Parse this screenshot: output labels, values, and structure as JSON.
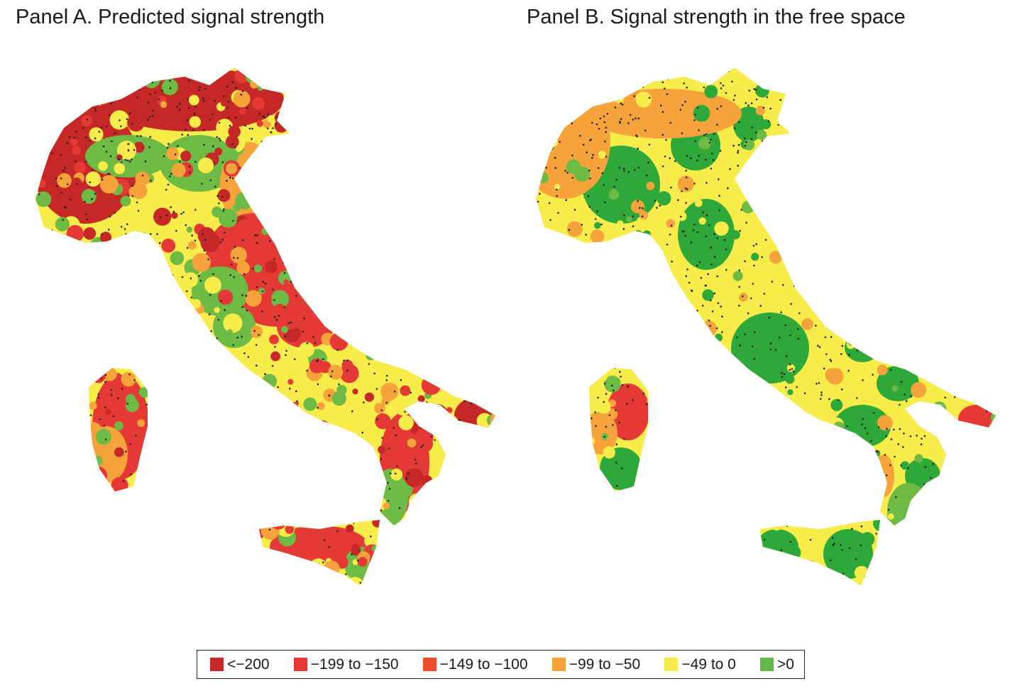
{
  "panel_a": {
    "title": "Panel A. Predicted signal strength"
  },
  "panel_b": {
    "title": "Panel B. Signal strength in the free space"
  },
  "legend": {
    "items": [
      {
        "label": "<−200",
        "color": "#c62828"
      },
      {
        "label": "−199 to −150",
        "color": "#e53935"
      },
      {
        "label": "−149 to −100",
        "color": "#ef4b2f"
      },
      {
        "label": "−99 to −50",
        "color": "#f5a33a"
      },
      {
        "label": "−49 to 0",
        "color": "#f7ec4a"
      },
      {
        "label": ">0",
        "color": "#5fb944"
      }
    ]
  },
  "map_colors": {
    "dark_red": "#c62828",
    "red": "#e53935",
    "orange": "#f5a33a",
    "yellow": "#f7ec4a",
    "green": "#6dbb45",
    "deep_green": "#2fa83a",
    "dots": "#222222"
  }
}
